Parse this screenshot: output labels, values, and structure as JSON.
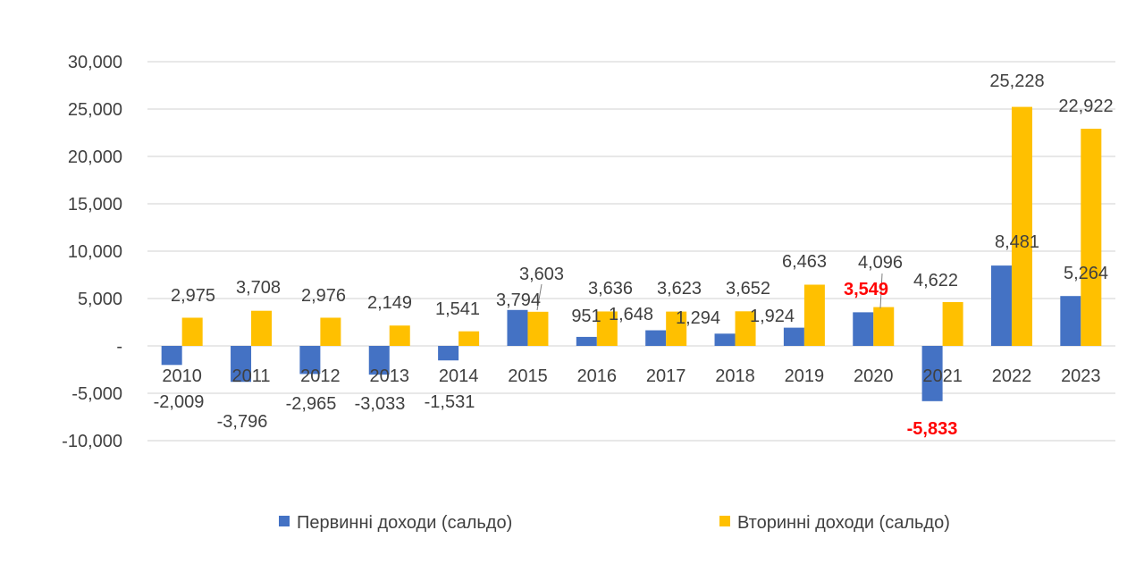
{
  "chart_data": {
    "type": "bar",
    "title": "",
    "xlabel": "",
    "ylabel": "",
    "ylim": [
      -10000,
      30000
    ],
    "yticks": [
      -10000,
      -5000,
      0,
      5000,
      10000,
      15000,
      20000,
      25000,
      30000
    ],
    "ytick_labels": [
      "-10,000",
      "-5,000",
      "-",
      "5,000",
      "10,000",
      "15,000",
      "20,000",
      "25,000",
      "30,000"
    ],
    "grid": true,
    "legend_position": "bottom",
    "categories": [
      "2010",
      "2011",
      "2012",
      "2013",
      "2014",
      "2015",
      "2016",
      "2017",
      "2018",
      "2019",
      "2020",
      "2021",
      "2022",
      "2023"
    ],
    "series": [
      {
        "name": "Первинні доходи (сальдо)",
        "color": "#4472C4",
        "values": [
          -2009,
          -3796,
          -2965,
          -3033,
          -1531,
          3794,
          951,
          1648,
          1294,
          1924,
          3549,
          -5833,
          8481,
          5264
        ],
        "labels": [
          "-2,009",
          "-3,796",
          "-2,965",
          "-3,033",
          "-1,531",
          "3,794",
          "951",
          "1,648",
          "1,294",
          "1,924",
          "3,549",
          "-5,833",
          "8,481",
          "5,264"
        ],
        "highlighted_labels": [
          "2020",
          "2021"
        ],
        "highlight_color": "#FF0000"
      },
      {
        "name": "Вторинні доходи (сальдо)",
        "color": "#FFC000",
        "values": [
          2975,
          3708,
          2976,
          2149,
          1541,
          3603,
          3636,
          3623,
          3652,
          6463,
          4096,
          4622,
          25228,
          22922
        ],
        "labels": [
          "2,975",
          "3,708",
          "2,976",
          "2,149",
          "1,541",
          "3,603",
          "3,636",
          "3,623",
          "3,652",
          "6,463",
          "4,096",
          "4,622",
          "25,228",
          "22,922"
        ]
      }
    ]
  }
}
